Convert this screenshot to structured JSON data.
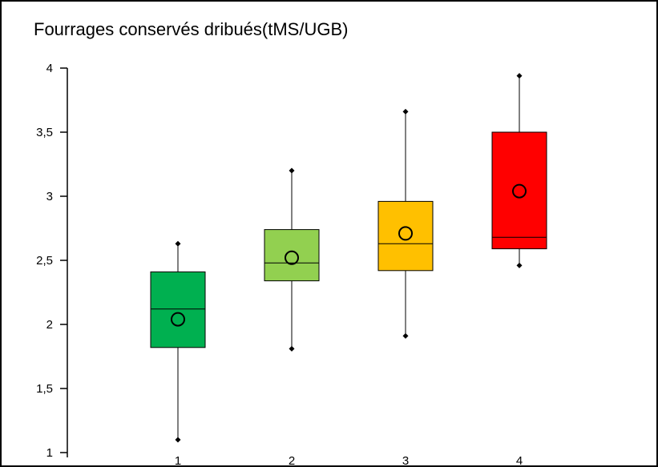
{
  "chart_data": {
    "type": "boxplot",
    "title": "Fourrages conservés dribués(tMS/UGB)",
    "xlabel": "",
    "ylabel": "",
    "ylim": [
      1,
      4
    ],
    "yticks": [
      "1",
      "1,5",
      "2",
      "2,5",
      "3",
      "3,5",
      "4"
    ],
    "ytick_values": [
      1,
      1.5,
      2,
      2.5,
      3,
      3.5,
      4
    ],
    "categories": [
      "1",
      "2",
      "3",
      "4"
    ],
    "boxes": [
      {
        "category": "1",
        "min": 1.1,
        "q1": 1.82,
        "median": 2.12,
        "q3": 2.41,
        "max": 2.63,
        "mean": 2.04,
        "color": "#00B050"
      },
      {
        "category": "2",
        "min": 1.81,
        "q1": 2.34,
        "median": 2.48,
        "q3": 2.74,
        "max": 3.2,
        "mean": 2.52,
        "color": "#92D050"
      },
      {
        "category": "3",
        "min": 1.91,
        "q1": 2.42,
        "median": 2.63,
        "q3": 2.96,
        "max": 3.66,
        "mean": 2.71,
        "color": "#FFC000"
      },
      {
        "category": "4",
        "min": 2.46,
        "q1": 2.59,
        "median": 2.68,
        "q3": 3.5,
        "max": 3.94,
        "mean": 3.04,
        "color": "#FF0000"
      }
    ],
    "grid": false,
    "legend": "none"
  }
}
